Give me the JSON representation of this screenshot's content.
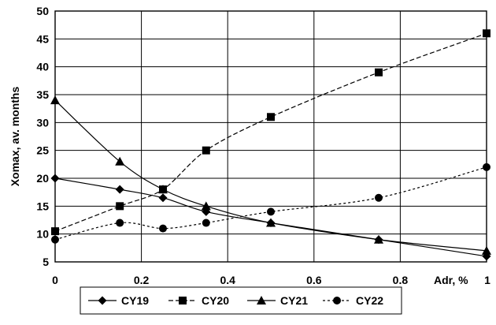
{
  "chart_data": {
    "type": "line",
    "title": "",
    "xlabel": "Adr, %",
    "ylabel": "Xomax, av. months",
    "xlim": [
      0,
      1
    ],
    "ylim": [
      5,
      50
    ],
    "x_ticks": [
      0,
      0.2,
      0.4,
      0.6,
      0.8,
      1
    ],
    "x_tick_labels": [
      "0",
      "0.2",
      "0.4",
      "0.6",
      "0.8",
      "1"
    ],
    "y_ticks": [
      5,
      10,
      15,
      20,
      25,
      30,
      35,
      40,
      45,
      50
    ],
    "y_tick_labels": [
      "5",
      "10",
      "15",
      "20",
      "25",
      "30",
      "35",
      "40",
      "45",
      "50"
    ],
    "grid": true,
    "legend_position": "bottom",
    "series": [
      {
        "name": "CY19",
        "marker": "diamond",
        "line_style": "solid",
        "color": "#000000",
        "x": [
          0,
          0.15,
          0.25,
          0.35,
          0.5,
          0.75,
          1
        ],
        "y": [
          20,
          18,
          16.5,
          14,
          12,
          9,
          6
        ]
      },
      {
        "name": "CY20",
        "marker": "square",
        "line_style": "dashed",
        "color": "#000000",
        "x": [
          0,
          0.15,
          0.25,
          0.35,
          0.5,
          0.75,
          1
        ],
        "y": [
          10.5,
          15,
          18,
          25,
          31,
          39,
          46
        ]
      },
      {
        "name": "CY21",
        "marker": "triangle",
        "line_style": "solid",
        "color": "#000000",
        "x": [
          0,
          0.15,
          0.25,
          0.35,
          0.5,
          0.75,
          1
        ],
        "y": [
          34,
          23,
          18,
          15,
          12,
          9,
          7
        ]
      },
      {
        "name": "CY22",
        "marker": "circle",
        "line_style": "dotted",
        "color": "#000000",
        "x": [
          0,
          0.15,
          0.25,
          0.35,
          0.5,
          0.75,
          1
        ],
        "y": [
          9,
          12,
          11,
          12,
          14,
          16.5,
          22
        ]
      }
    ]
  }
}
